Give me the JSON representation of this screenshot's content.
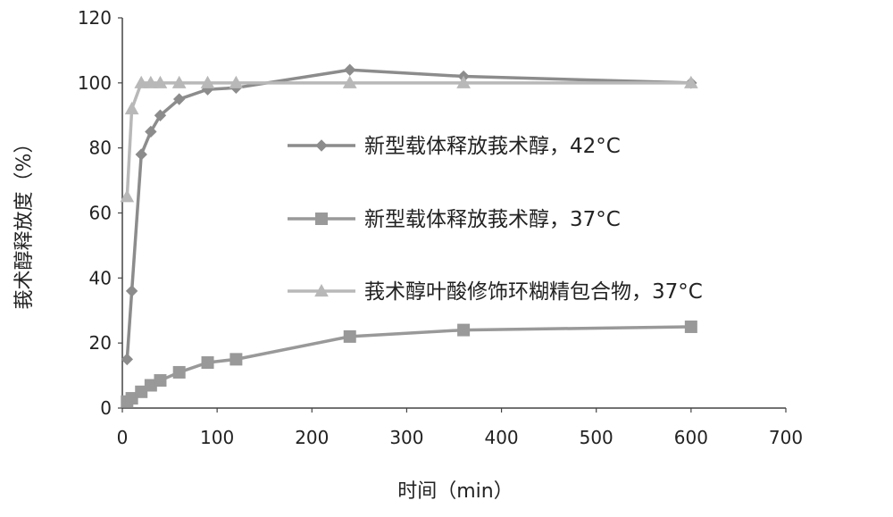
{
  "chart_data": {
    "type": "line",
    "xlabel": "时间（min）",
    "ylabel": "莪术醇释放度（%）",
    "xlim": [
      0,
      700
    ],
    "ylim": [
      0,
      120
    ],
    "xticks": [
      "0",
      "100",
      "200",
      "300",
      "400",
      "500",
      "600",
      "700"
    ],
    "yticks": [
      "0",
      "20",
      "40",
      "60",
      "80",
      "100",
      "120"
    ],
    "grid": false,
    "legend_position": "right",
    "series": [
      {
        "name": "新型载体释放莪术醇，42°C",
        "marker": "diamond",
        "color": "#8c8c8c",
        "x": [
          5,
          10,
          20,
          30,
          40,
          60,
          90,
          120,
          240,
          360,
          600
        ],
        "y": [
          15,
          36,
          78,
          85,
          90,
          95,
          98,
          98.5,
          104,
          102,
          100
        ]
      },
      {
        "name": "新型载体释放莪术醇，37°C",
        "marker": "square",
        "color": "#999999",
        "x": [
          5,
          10,
          20,
          30,
          40,
          60,
          90,
          120,
          240,
          360,
          600
        ],
        "y": [
          2,
          3,
          5,
          7,
          8.5,
          11,
          14,
          15,
          22,
          24,
          25
        ]
      },
      {
        "name": "莪术醇叶酸修饰环糊精包合物，37°C",
        "marker": "triangle",
        "color": "#b8b8b8",
        "x": [
          5,
          10,
          20,
          30,
          40,
          60,
          90,
          120,
          240,
          360,
          600
        ],
        "y": [
          65,
          92,
          100,
          100,
          100,
          100,
          100,
          100,
          100,
          100,
          100
        ]
      }
    ]
  }
}
